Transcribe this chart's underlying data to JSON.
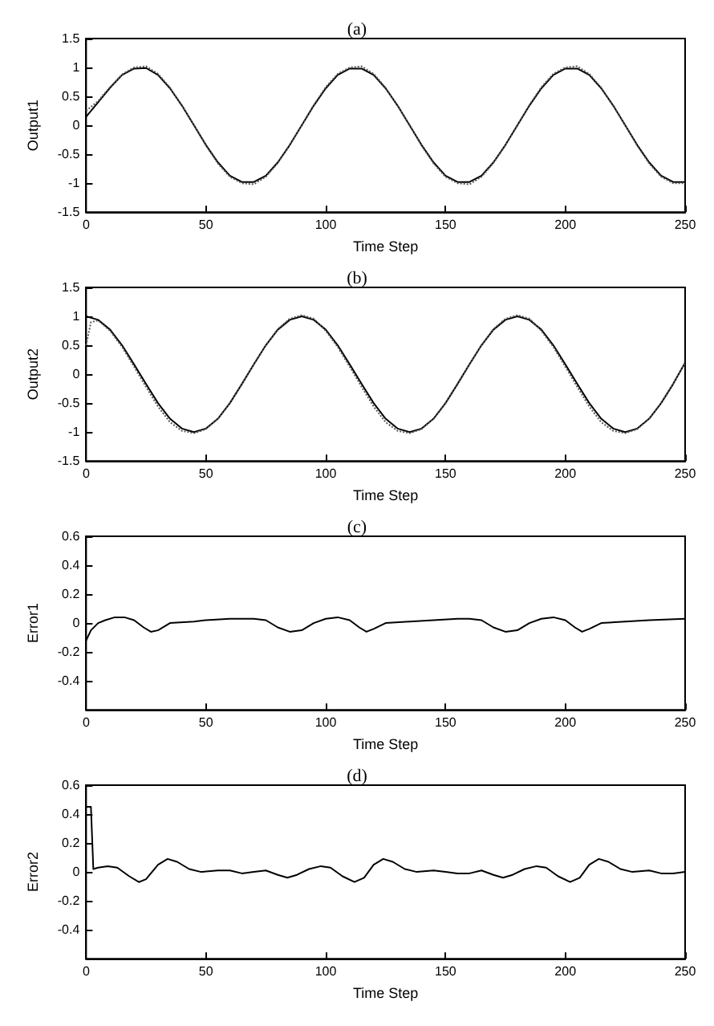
{
  "chart_data": [
    {
      "type": "line",
      "title": "(a)",
      "xlabel": "Time Step",
      "ylabel": "Output1",
      "xlim": [
        0,
        250
      ],
      "xticks": [
        0,
        50,
        100,
        150,
        200,
        250
      ],
      "ylim": [
        -1.5,
        1.5
      ],
      "yticks": [
        -1.5,
        -1,
        -0.5,
        0,
        0.5,
        1,
        1.5
      ],
      "grid": false,
      "marker": "none",
      "x": [
        0,
        5,
        10,
        15,
        20,
        25,
        30,
        35,
        40,
        45,
        50,
        55,
        60,
        65,
        70,
        75,
        80,
        85,
        90,
        95,
        100,
        105,
        110,
        115,
        120,
        125,
        130,
        135,
        140,
        145,
        150,
        155,
        160,
        165,
        170,
        175,
        180,
        185,
        190,
        195,
        200,
        205,
        210,
        215,
        220,
        225,
        230,
        235,
        240,
        245,
        250
      ],
      "series": [
        {
          "color": "#000000",
          "line_style": "solid",
          "values": [
            0.15,
            0.4,
            0.65,
            0.87,
            0.98,
            0.99,
            0.87,
            0.64,
            0.34,
            0.0,
            -0.34,
            -0.64,
            -0.87,
            -0.98,
            -0.98,
            -0.87,
            -0.64,
            -0.34,
            0.0,
            0.34,
            0.64,
            0.87,
            0.98,
            0.98,
            0.87,
            0.64,
            0.34,
            0.0,
            -0.34,
            -0.64,
            -0.87,
            -0.98,
            -0.98,
            -0.87,
            -0.64,
            -0.34,
            0.0,
            0.34,
            0.64,
            0.87,
            0.98,
            0.98,
            0.87,
            0.64,
            0.34,
            0.0,
            -0.34,
            -0.64,
            -0.87,
            -0.98,
            -0.98
          ]
        },
        {
          "color": "#555555",
          "line_style": "dotted",
          "values": [
            0.25,
            0.42,
            0.66,
            0.88,
            1.0,
            1.02,
            0.89,
            0.65,
            0.34,
            0.0,
            -0.35,
            -0.66,
            -0.89,
            -1.0,
            -1.02,
            -0.89,
            -0.65,
            -0.34,
            0.0,
            0.35,
            0.66,
            0.89,
            1.0,
            1.02,
            0.89,
            0.65,
            0.34,
            0.0,
            -0.35,
            -0.66,
            -0.89,
            -1.0,
            -1.02,
            -0.89,
            -0.65,
            -0.34,
            0.0,
            0.35,
            0.66,
            0.89,
            1.0,
            1.02,
            0.89,
            0.65,
            0.34,
            0.0,
            -0.35,
            -0.66,
            -0.89,
            -1.0,
            -1.0
          ]
        }
      ]
    },
    {
      "type": "line",
      "title": "(b)",
      "xlabel": "Time Step",
      "ylabel": "Output2",
      "xlim": [
        0,
        250
      ],
      "xticks": [
        0,
        50,
        100,
        150,
        200,
        250
      ],
      "ylim": [
        -1.5,
        1.5
      ],
      "yticks": [
        -1.5,
        -1,
        -0.5,
        0,
        0.5,
        1,
        1.5
      ],
      "grid": false,
      "marker": "none",
      "x": [
        0,
        5,
        10,
        15,
        20,
        25,
        30,
        35,
        40,
        45,
        50,
        55,
        60,
        65,
        70,
        75,
        80,
        85,
        90,
        95,
        100,
        105,
        110,
        115,
        120,
        125,
        130,
        135,
        140,
        145,
        150,
        155,
        160,
        165,
        170,
        175,
        180,
        185,
        190,
        195,
        200,
        205,
        210,
        215,
        220,
        225,
        230,
        235,
        240,
        245,
        250
      ],
      "series": [
        {
          "color": "#000000",
          "line_style": "solid",
          "values": [
            1.0,
            0.94,
            0.77,
            0.5,
            0.17,
            -0.17,
            -0.5,
            -0.77,
            -0.94,
            -1.0,
            -0.94,
            -0.77,
            -0.5,
            -0.17,
            0.17,
            0.5,
            0.77,
            0.94,
            1.0,
            0.94,
            0.77,
            0.5,
            0.17,
            -0.17,
            -0.5,
            -0.77,
            -0.94,
            -1.0,
            -0.94,
            -0.77,
            -0.5,
            -0.17,
            0.17,
            0.5,
            0.77,
            0.94,
            1.0,
            0.94,
            0.77,
            0.5,
            0.17,
            -0.17,
            -0.5,
            -0.77,
            -0.94,
            -1.0,
            -0.94,
            -0.77,
            -0.5,
            -0.17,
            0.2
          ]
        },
        {
          "color": "#555555",
          "line_style": "dotted",
          "x": [
            0,
            2,
            5,
            10,
            15,
            20,
            25,
            30,
            35,
            40,
            45,
            50,
            55,
            60,
            65,
            70,
            75,
            80,
            85,
            90,
            95,
            100,
            105,
            110,
            115,
            120,
            125,
            130,
            135,
            140,
            145,
            150,
            155,
            160,
            165,
            170,
            175,
            180,
            185,
            190,
            195,
            200,
            205,
            210,
            215,
            220,
            225,
            230,
            235,
            240,
            245,
            250
          ],
          "values": [
            0.5,
            0.9,
            0.93,
            0.75,
            0.47,
            0.13,
            -0.22,
            -0.56,
            -0.83,
            -0.98,
            -1.02,
            -0.95,
            -0.77,
            -0.5,
            -0.17,
            0.17,
            0.5,
            0.78,
            0.96,
            1.02,
            0.96,
            0.75,
            0.47,
            0.13,
            -0.22,
            -0.56,
            -0.83,
            -0.98,
            -1.02,
            -0.95,
            -0.77,
            -0.5,
            -0.17,
            0.17,
            0.5,
            0.78,
            0.96,
            1.02,
            0.96,
            0.75,
            0.47,
            0.13,
            -0.22,
            -0.56,
            -0.83,
            -0.98,
            -1.02,
            -0.95,
            -0.77,
            -0.5,
            -0.17,
            0.2
          ]
        }
      ]
    },
    {
      "type": "line",
      "title": "(c)",
      "xlabel": "Time Step",
      "ylabel": "Error1",
      "xlim": [
        0,
        250
      ],
      "xticks": [
        0,
        50,
        100,
        150,
        200,
        250
      ],
      "ylim": [
        -0.6,
        0.6
      ],
      "yticks": [
        -0.4,
        -0.2,
        0,
        0.2,
        0.4,
        0.6
      ],
      "grid": false,
      "marker": "none",
      "series": [
        {
          "color": "#000000",
          "line_style": "solid",
          "x": [
            0,
            2,
            5,
            8,
            12,
            16,
            20,
            24,
            27,
            30,
            35,
            45,
            50,
            60,
            70,
            75,
            80,
            85,
            90,
            95,
            100,
            105,
            110,
            114,
            117,
            120,
            125,
            135,
            145,
            155,
            160,
            165,
            170,
            175,
            180,
            185,
            190,
            195,
            200,
            204,
            207,
            210,
            215,
            225,
            235,
            250
          ],
          "values": [
            -0.12,
            -0.05,
            0.0,
            0.02,
            0.04,
            0.04,
            0.02,
            -0.03,
            -0.06,
            -0.05,
            0.0,
            0.01,
            0.02,
            0.03,
            0.03,
            0.02,
            -0.03,
            -0.06,
            -0.05,
            0.0,
            0.03,
            0.04,
            0.02,
            -0.03,
            -0.06,
            -0.04,
            0.0,
            0.01,
            0.02,
            0.03,
            0.03,
            0.02,
            -0.03,
            -0.06,
            -0.05,
            0.0,
            0.03,
            0.04,
            0.02,
            -0.03,
            -0.06,
            -0.04,
            0.0,
            0.01,
            0.02,
            0.03
          ]
        }
      ]
    },
    {
      "type": "line",
      "title": "(d)",
      "xlabel": "Time Step",
      "ylabel": "Error2",
      "xlim": [
        0,
        250
      ],
      "xticks": [
        0,
        50,
        100,
        150,
        200,
        250
      ],
      "ylim": [
        -0.6,
        0.6
      ],
      "yticks": [
        -0.4,
        -0.2,
        0,
        0.2,
        0.4,
        0.6
      ],
      "grid": false,
      "marker": "none",
      "series": [
        {
          "color": "#000000",
          "line_style": "solid",
          "x": [
            0,
            1,
            2,
            3,
            5,
            9,
            13,
            18,
            22,
            25,
            30,
            34,
            38,
            43,
            48,
            55,
            60,
            65,
            70,
            75,
            80,
            84,
            88,
            93,
            98,
            102,
            107,
            112,
            116,
            120,
            124,
            128,
            133,
            138,
            145,
            150,
            155,
            160,
            165,
            170,
            174,
            178,
            183,
            188,
            192,
            197,
            202,
            206,
            210,
            214,
            218,
            223,
            228,
            235,
            240,
            245,
            250
          ],
          "values": [
            0.45,
            0.45,
            0.45,
            0.02,
            0.03,
            0.04,
            0.03,
            -0.03,
            -0.07,
            -0.05,
            0.05,
            0.09,
            0.07,
            0.02,
            0.0,
            0.01,
            0.01,
            -0.01,
            0.0,
            0.01,
            -0.02,
            -0.04,
            -0.02,
            0.02,
            0.04,
            0.03,
            -0.03,
            -0.07,
            -0.04,
            0.05,
            0.09,
            0.07,
            0.02,
            0.0,
            0.01,
            0.0,
            -0.01,
            -0.01,
            0.01,
            -0.02,
            -0.04,
            -0.02,
            0.02,
            0.04,
            0.03,
            -0.03,
            -0.07,
            -0.04,
            0.05,
            0.09,
            0.07,
            0.02,
            0.0,
            0.01,
            -0.01,
            -0.01,
            0.0
          ]
        }
      ]
    }
  ]
}
